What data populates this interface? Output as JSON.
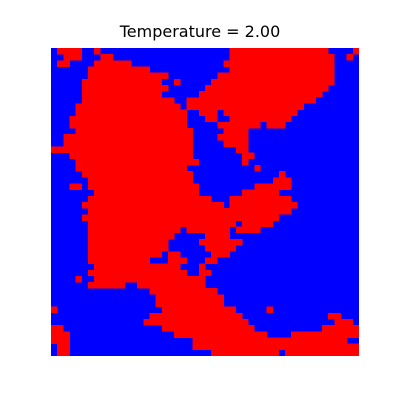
{
  "figure": {
    "title": "Temperature = 2.00"
  },
  "chart_data": {
    "type": "heatmap",
    "title": "Temperature = 2.00",
    "xlabel": "",
    "ylabel": "",
    "grid": false,
    "axes_visible": false,
    "rows": 50,
    "cols": 50,
    "values_legend": {
      "1": "red",
      "-1": "blue"
    },
    "colors": {
      "up": "#ff0000",
      "down": "#0000ff"
    },
    "red_cells_by_row": [
      [
        [
          1,
          4
        ],
        [
          7,
          7
        ],
        [
          29,
          44
        ],
        [
          49,
          49
        ]
      ],
      [
        [
          2,
          4
        ],
        [
          8,
          9
        ],
        [
          29,
          45
        ],
        [
          48,
          48
        ]
      ],
      [
        [
          1,
          2
        ],
        [
          7,
          12
        ],
        [
          28,
          45
        ]
      ],
      [
        [
          6,
          14
        ],
        [
          15,
          15
        ],
        [
          29,
          45
        ]
      ],
      [
        [
          6,
          17
        ],
        [
          18,
          18
        ],
        [
          27,
          45
        ]
      ],
      [
        [
          5,
          17
        ],
        [
          20,
          20
        ],
        [
          26,
          45
        ]
      ],
      [
        [
          5,
          18
        ],
        [
          25,
          44
        ]
      ],
      [
        [
          5,
          17
        ],
        [
          24,
          43
        ]
      ],
      [
        [
          5,
          19
        ],
        [
          22,
          42
        ]
      ],
      [
        [
          4,
          20
        ],
        [
          22,
          40
        ]
      ],
      [
        [
          4,
          21
        ],
        [
          24,
          26
        ],
        [
          28,
          39
        ]
      ],
      [
        [
          3,
          21
        ],
        [
          25,
          26
        ],
        [
          29,
          38
        ]
      ],
      [
        [
          3,
          21
        ],
        [
          27,
          33
        ],
        [
          35,
          37
        ]
      ],
      [
        [
          4,
          22
        ],
        [
          28,
          31
        ]
      ],
      [
        [
          2,
          22
        ],
        [
          27,
          31
        ]
      ],
      [
        [
          2,
          22
        ],
        [
          28,
          31
        ]
      ],
      [
        [
          0,
          3
        ],
        [
          4,
          22
        ],
        [
          30,
          31
        ]
      ],
      [
        [
          3,
          22
        ],
        [
          31,
          32
        ]
      ],
      [
        [
          4,
          23
        ],
        [
          31,
          31
        ]
      ],
      [
        [
          4,
          21
        ],
        [
          33,
          33
        ]
      ],
      [
        [
          5,
          22
        ],
        [
          37,
          37
        ]
      ],
      [
        [
          6,
          22
        ],
        [
          36,
          38
        ]
      ],
      [
        [
          3,
          4
        ],
        [
          6,
          23
        ],
        [
          33,
          38
        ]
      ],
      [
        [
          7,
          23
        ],
        [
          31,
          36
        ]
      ],
      [
        [
          6,
          25
        ],
        [
          29,
          38
        ]
      ],
      [
        [
          5,
          27
        ],
        [
          29,
          39
        ]
      ],
      [
        [
          6,
          29
        ],
        [
          30,
          38
        ]
      ],
      [
        [
          5,
          28
        ],
        [
          29,
          36
        ]
      ],
      [
        [
          6,
          29
        ],
        [
          31,
          35
        ]
      ],
      [
        [
          6,
          20
        ],
        [
          22,
          28
        ],
        [
          30,
          33
        ]
      ],
      [
        [
          6,
          19
        ],
        [
          25,
          28
        ]
      ],
      [
        [
          6,
          18
        ],
        [
          24,
          30
        ]
      ],
      [
        [
          6,
          18
        ],
        [
          25,
          29
        ]
      ],
      [
        [
          6,
          17
        ],
        [
          19,
          20
        ],
        [
          26,
          28
        ]
      ],
      [
        [
          6,
          15
        ],
        [
          19,
          21
        ],
        [
          25,
          26
        ]
      ],
      [
        [
          7,
          20
        ],
        [
          24,
          24
        ]
      ],
      [
        [
          6,
          21
        ],
        [
          24,
          25
        ]
      ],
      [
        [
          4,
          4
        ],
        [
          7,
          24
        ]
      ],
      [
        [
          6,
          11
        ],
        [
          14,
          24
        ]
      ],
      [
        [
          16,
          26
        ]
      ],
      [
        [
          17,
          27
        ]
      ],
      [
        [
          17,
          27
        ]
      ],
      [
        [
          0,
          0
        ],
        [
          18,
          29
        ],
        [
          35,
          35
        ]
      ],
      [
        [
          16,
          30
        ],
        [
          45,
          46
        ]
      ],
      [
        [
          15,
          31
        ],
        [
          46,
          48
        ]
      ],
      [
        [
          0,
          1
        ],
        [
          18,
          32
        ],
        [
          44,
          49
        ]
      ],
      [
        [
          0,
          2
        ],
        [
          20,
          34
        ],
        [
          39,
          49
        ]
      ],
      [
        [
          0,
          2
        ],
        [
          23,
          47
        ]
      ],
      [
        [
          1,
          2
        ],
        [
          23,
          49
        ]
      ],
      [
        [
          1,
          2
        ],
        [
          26,
          36
        ],
        [
          38,
          49
        ]
      ]
    ]
  }
}
